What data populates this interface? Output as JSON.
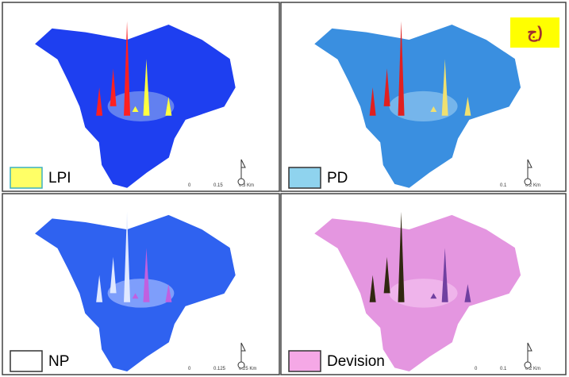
{
  "figure_label": "ج)",
  "panels": [
    {
      "label": "LPI",
      "scale": [
        "0",
        "0.15",
        "0.3 Km"
      ]
    },
    {
      "label": "PD",
      "scale": [
        "0.1",
        "0.2 Km"
      ]
    },
    {
      "label": "NP",
      "scale": [
        "0",
        "0.125",
        "0.25 Km"
      ]
    },
    {
      "label": "Devision",
      "scale": [
        "0",
        "0.1",
        "0.2 Km"
      ]
    }
  ]
}
